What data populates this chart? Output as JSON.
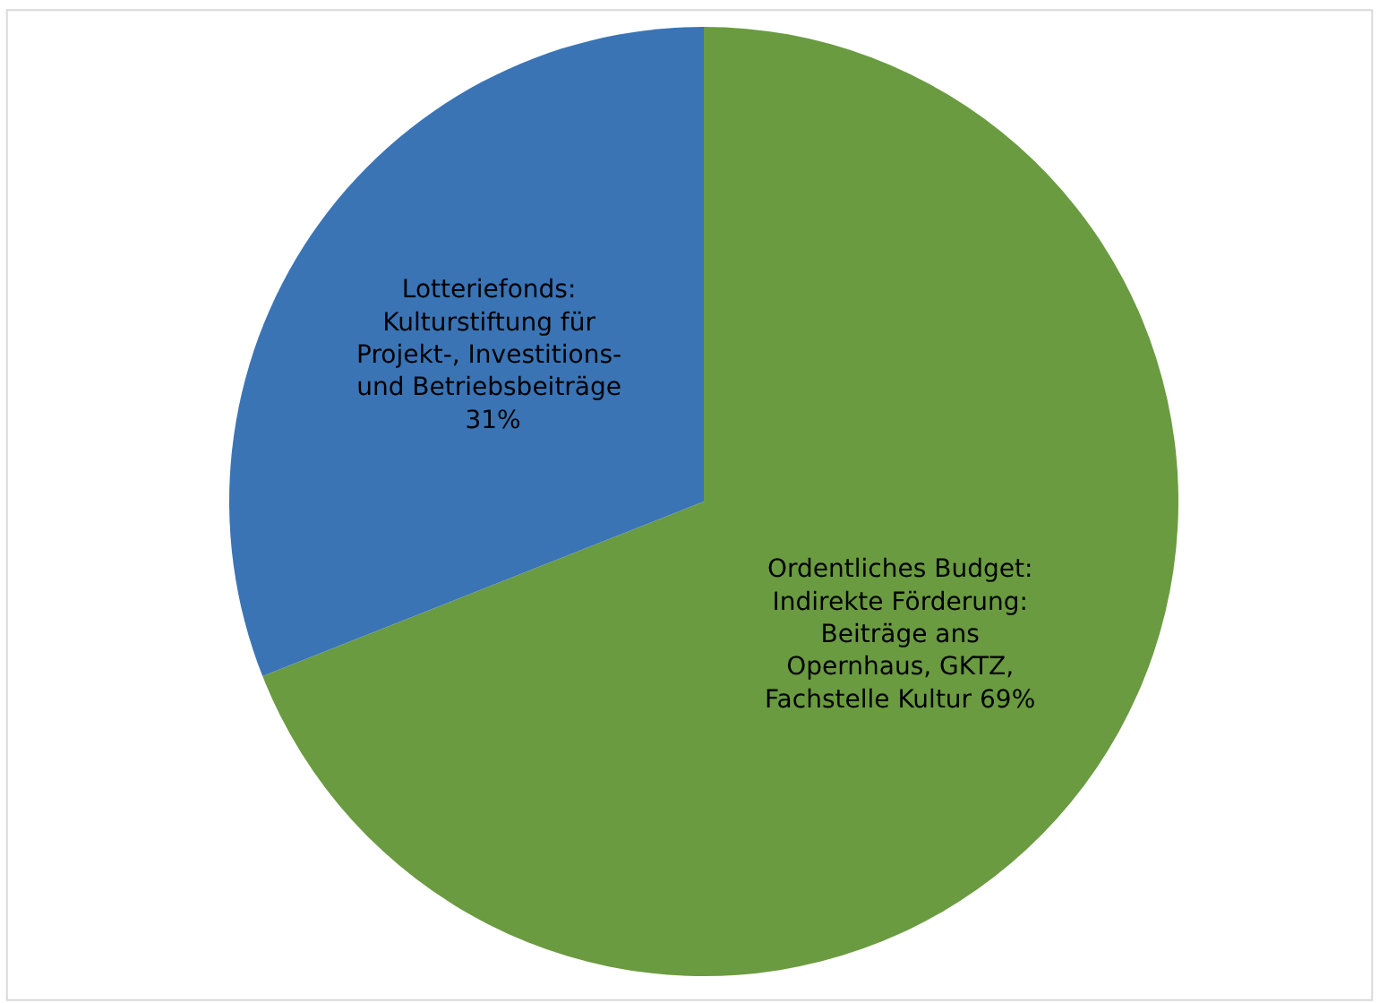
{
  "chart_data": {
    "type": "pie",
    "categories": [
      "Ordentliches Budget:\nIndirekte Förderung:\nBeiträge ans\nOpernhaus, GKTZ,\nFachstelle Kultur",
      "Lotteriefonds:\nKulturstiftung für\nProjekt-, Investitions-\nund Betriebsbeiträge\n"
    ],
    "values": [
      69,
      31
    ],
    "value_labels": [
      "69%",
      "31%"
    ],
    "colors": [
      "#6a9b40",
      "#3a74b5"
    ]
  }
}
